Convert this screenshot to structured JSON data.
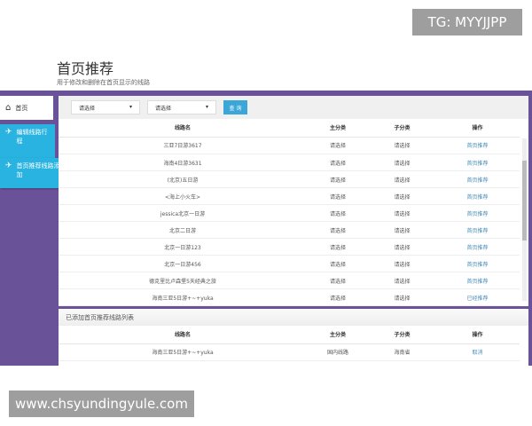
{
  "page": {
    "title": "首页推荐",
    "subtitle": "用于修改和删除在首页显示的线路"
  },
  "sidebar": {
    "items": [
      {
        "label": "首页",
        "icon": "home-icon"
      },
      {
        "label": "编辑线路行程",
        "icon": "plane-icon"
      },
      {
        "label": "首页推荐线路添加",
        "icon": "plane-icon"
      }
    ]
  },
  "filter": {
    "select1": "请选择",
    "select2": "请选择",
    "search_label": "查 询"
  },
  "table": {
    "headers": [
      "线路名",
      "主分类",
      "子分类",
      "操作"
    ],
    "rows": [
      [
        "三亚7日游3617",
        "请选择",
        "请选择",
        "首页推荐"
      ],
      [
        "海南4日游3631",
        "请选择",
        "请选择",
        "首页推荐"
      ],
      [
        "(北京)五日游",
        "请选择",
        "请选择",
        "首页推荐"
      ],
      [
        "<海上小火车>",
        "请选择",
        "请选择",
        "首页推荐"
      ],
      [
        "jessica北京一日游",
        "请选择",
        "请选择",
        "首页推荐"
      ],
      [
        "北京二日游",
        "请选择",
        "请选择",
        "首页推荐"
      ],
      [
        "北京一日游123",
        "请选择",
        "请选择",
        "首页推荐"
      ],
      [
        "北京一日游456",
        "请选择",
        "请选择",
        "首页推荐"
      ],
      [
        "德克里比卢森堡5天经典之旅",
        "请选择",
        "请选择",
        "首页推荐"
      ],
      [
        "海南三亚5日游+~+yuka",
        "请选择",
        "请选择",
        "已经推荐"
      ]
    ]
  },
  "added": {
    "title": "已添加首页推荐线路列表",
    "headers": [
      "线路名",
      "主分类",
      "子分类",
      "操作"
    ],
    "rows": [
      [
        "海南三亚5日游+~+yuka",
        "国内线路",
        "海南省",
        "取消"
      ]
    ]
  },
  "watermarks": {
    "top": "TG: MYYJJPP",
    "bottom": "www.chsyundingyule.com"
  }
}
